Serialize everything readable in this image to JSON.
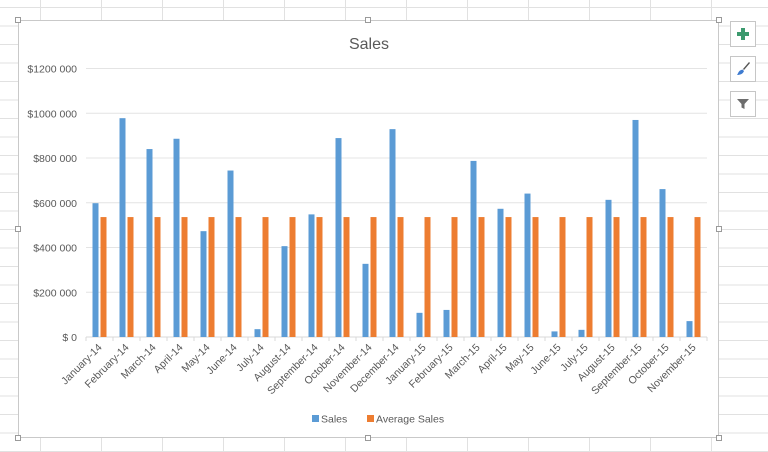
{
  "chart_data": {
    "type": "bar",
    "title": "Sales",
    "xlabel": "",
    "ylabel": "",
    "ylim": [
      0,
      1200000
    ],
    "yticks": [
      0,
      200000,
      400000,
      600000,
      800000,
      1000000,
      1200000
    ],
    "ytick_labels": [
      "$ 0",
      "$200 000",
      "$400 000",
      "$600 000",
      "$800 000",
      "$1000 000",
      "$1200 000"
    ],
    "grid": true,
    "legend_position": "bottom",
    "categories": [
      "January-14",
      "February-14",
      "March-14",
      "April-14",
      "May-14",
      "June-14",
      "July-14",
      "August-14",
      "September-14",
      "October-14",
      "November-14",
      "December-14",
      "January-15",
      "February-15",
      "March-15",
      "April-15",
      "May-15",
      "June-15",
      "July-15",
      "August-15",
      "September-15",
      "October-15",
      "November-15"
    ],
    "series": [
      {
        "name": "Sales",
        "color": "#5b9bd5",
        "values": [
          598000,
          978000,
          840000,
          886000,
          473000,
          744000,
          35000,
          406000,
          548000,
          889000,
          327000,
          929000,
          108000,
          121000,
          787000,
          573000,
          641000,
          25000,
          32000,
          613000,
          970000,
          661000,
          71000
        ]
      },
      {
        "name": "Average Sales",
        "color": "#ed7d31",
        "values": [
          536000,
          536000,
          536000,
          536000,
          536000,
          536000,
          536000,
          536000,
          536000,
          536000,
          536000,
          536000,
          536000,
          536000,
          536000,
          536000,
          536000,
          536000,
          536000,
          536000,
          536000,
          536000,
          536000
        ]
      }
    ]
  },
  "side_buttons": [
    {
      "name": "chart-elements",
      "icon": "plus-icon"
    },
    {
      "name": "chart-styles",
      "icon": "paintbrush-icon"
    },
    {
      "name": "chart-filters",
      "icon": "filter-icon"
    }
  ]
}
